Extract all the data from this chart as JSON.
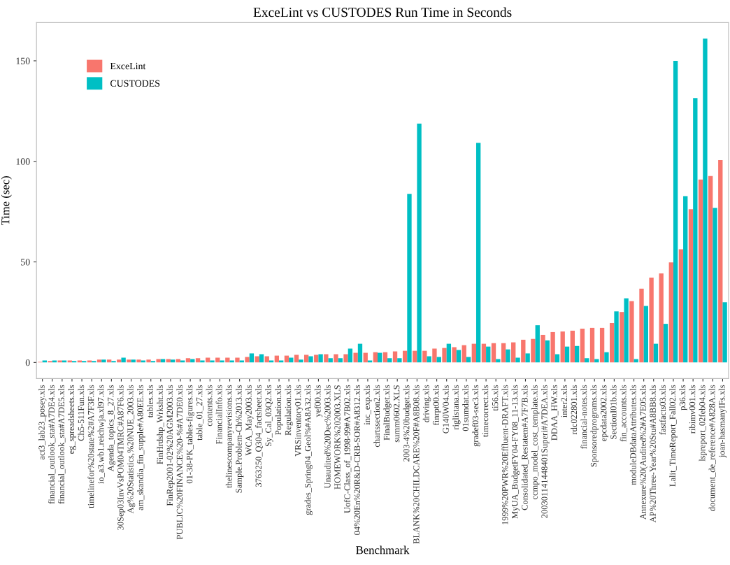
{
  "chart_data": {
    "type": "bar",
    "title": "ExceLint vs CUSTODES Run Time in Seconds",
    "xlabel": "Benchmark",
    "ylabel": "Time (sec)",
    "categories": [
      "act3_lab23_posey.xls",
      "financial_outlook_sta#A7DE4.xls",
      "financial_outlook_sta#A7DE5.xls",
      "eg_spreadsheets.xls",
      "Ch5-511Fun.xls",
      "timelinefor%20state%2#A7F3F.xls",
      "io_a3.wb1.reichwja.xl97.xls",
      "Agenda_topics_8_27.xls",
      "30Sep03InvVsPOM04TMRC#A87F6.xls",
      "Ag%20Statistics,%20NUE_2003.xls",
      "am_skandia_fin_supple#A80EE.xls",
      "tables.xls",
      "FinHrdshp_Wrksht.xls",
      "FinRep2001-02%20AGM2003.xls",
      "PUBLIC%20FINANCE%20-%#A7DE0.xls",
      "01-38-PK_tables-figures.xls",
      "table_01_27.xls",
      "contents.xls",
      "FinancialInfo.xls",
      "thelinescompanyrevisions.xls",
      "Sample.Problem-Ch%2013.xls",
      "WCA_May2003.xls",
      "3763250_Q304_factsheet.xls",
      "Sy_Cal_03Q2.xls",
      "Population.xls",
      "Regulation.xls",
      "VRSinventory01.xls",
      "grades_Spring04_Geol%#A8A32.xls",
      "yef00.xls",
      "Unaudited%20Dec%2003.xls",
      "HOMEWORK%202003.XLS",
      "UofC-Class_of_1998-99#A7B02.xls",
      "04%20En%20R&D-CRB-SOR#A8312.xls",
      "inc_exp.xls",
      "chartssection2.xls",
      "FinalBudget.xls",
      "summ0602.XLS",
      "2003-4%20budget.xls",
      "BLANK%20CHILDCARE%20F#A8B08.xls",
      "driving.xls",
      "finrpt00.xls",
      "G140W04.xls",
      "riglistana.xls",
      "01sumdat.xls",
      "gradef03-sec3.xls",
      "timecorrect.xls",
      "ti56.xls",
      "1999%20PWR%20Effluent-DRAFT.xls",
      "MyUA_BudgetFY04-FY08_11-13.xls",
      "Consolidated_Restatem#A7F7B.xls",
      "ccmpo_model_cost_template.xls",
      "200301141448401Superi#A7DEA.xls",
      "DDAA_HW.xls",
      "inter2.xls",
      "rdc022801.xls",
      "financial-notes.xls",
      "Sponsoredprograms.xls",
      "epcdata2002.xls",
      "SectionI01b.xls",
      "fin_accounts.xls",
      "moduleDBdataAttributes.xls",
      "Annexure%20(Audited%2#A7E05.xls",
      "AP%20Three-Year%20Stu#A8BB8.xls",
      "fastfacts03.xls",
      "Lalit_TimeReport_Fall02.xls",
      "p36.xls",
      "ribimv001.xls",
      "lspreport_02feb04.xls",
      "document_de_reference#A828A.xls",
      "joan-hasmanyIFs.xls"
    ],
    "series": [
      {
        "name": "ExceLint",
        "color": "#f8766d",
        "values": [
          0.3,
          0.7,
          1.0,
          1.0,
          1.0,
          1.0,
          1.4,
          1.4,
          1.4,
          1.4,
          1.4,
          1.4,
          1.7,
          1.7,
          1.7,
          2.1,
          2.1,
          2.4,
          2.4,
          2.4,
          2.4,
          2.7,
          3.1,
          3.1,
          3.4,
          3.4,
          3.8,
          3.8,
          3.8,
          4.1,
          4.1,
          4.1,
          4.8,
          4.8,
          5.1,
          5.1,
          5.5,
          5.8,
          5.8,
          5.8,
          6.9,
          7.2,
          7.6,
          8.6,
          9.3,
          9.3,
          9.6,
          9.6,
          10.0,
          11.3,
          11.7,
          13.7,
          15.1,
          15.4,
          15.8,
          16.8,
          17.2,
          17.2,
          19.6,
          25.1,
          30.5,
          36.7,
          42.2,
          44.3,
          49.8,
          56.3,
          76.2,
          91.0,
          92.7,
          100.6
        ]
      },
      {
        "name": "CUSTODES",
        "color": "#00bfc4",
        "values": [
          1.0,
          1.0,
          1.0,
          0.7,
          0.7,
          0.7,
          1.4,
          0.7,
          2.4,
          1.4,
          1.0,
          0.7,
          1.7,
          1.4,
          1.0,
          1.7,
          1.0,
          1.0,
          1.0,
          1.0,
          1.0,
          4.5,
          4.1,
          1.0,
          1.0,
          2.4,
          1.4,
          3.1,
          4.1,
          2.1,
          2.1,
          6.9,
          9.3,
          1.0,
          4.8,
          2.1,
          2.1,
          83.8,
          118.8,
          3.1,
          2.7,
          9.3,
          6.2,
          2.7,
          109.2,
          7.9,
          1.7,
          6.5,
          2.4,
          4.5,
          18.5,
          11.0,
          4.1,
          7.9,
          8.2,
          2.1,
          1.7,
          5.1,
          25.4,
          31.9,
          1.7,
          28.1,
          9.3,
          19.2,
          150.0,
          82.7,
          131.5,
          161.0,
          76.9,
          29.9
        ]
      }
    ],
    "ylim": [
      -8,
      169
    ],
    "yticks": [
      0,
      50,
      100,
      150
    ],
    "grid": false,
    "legend": "top left"
  }
}
